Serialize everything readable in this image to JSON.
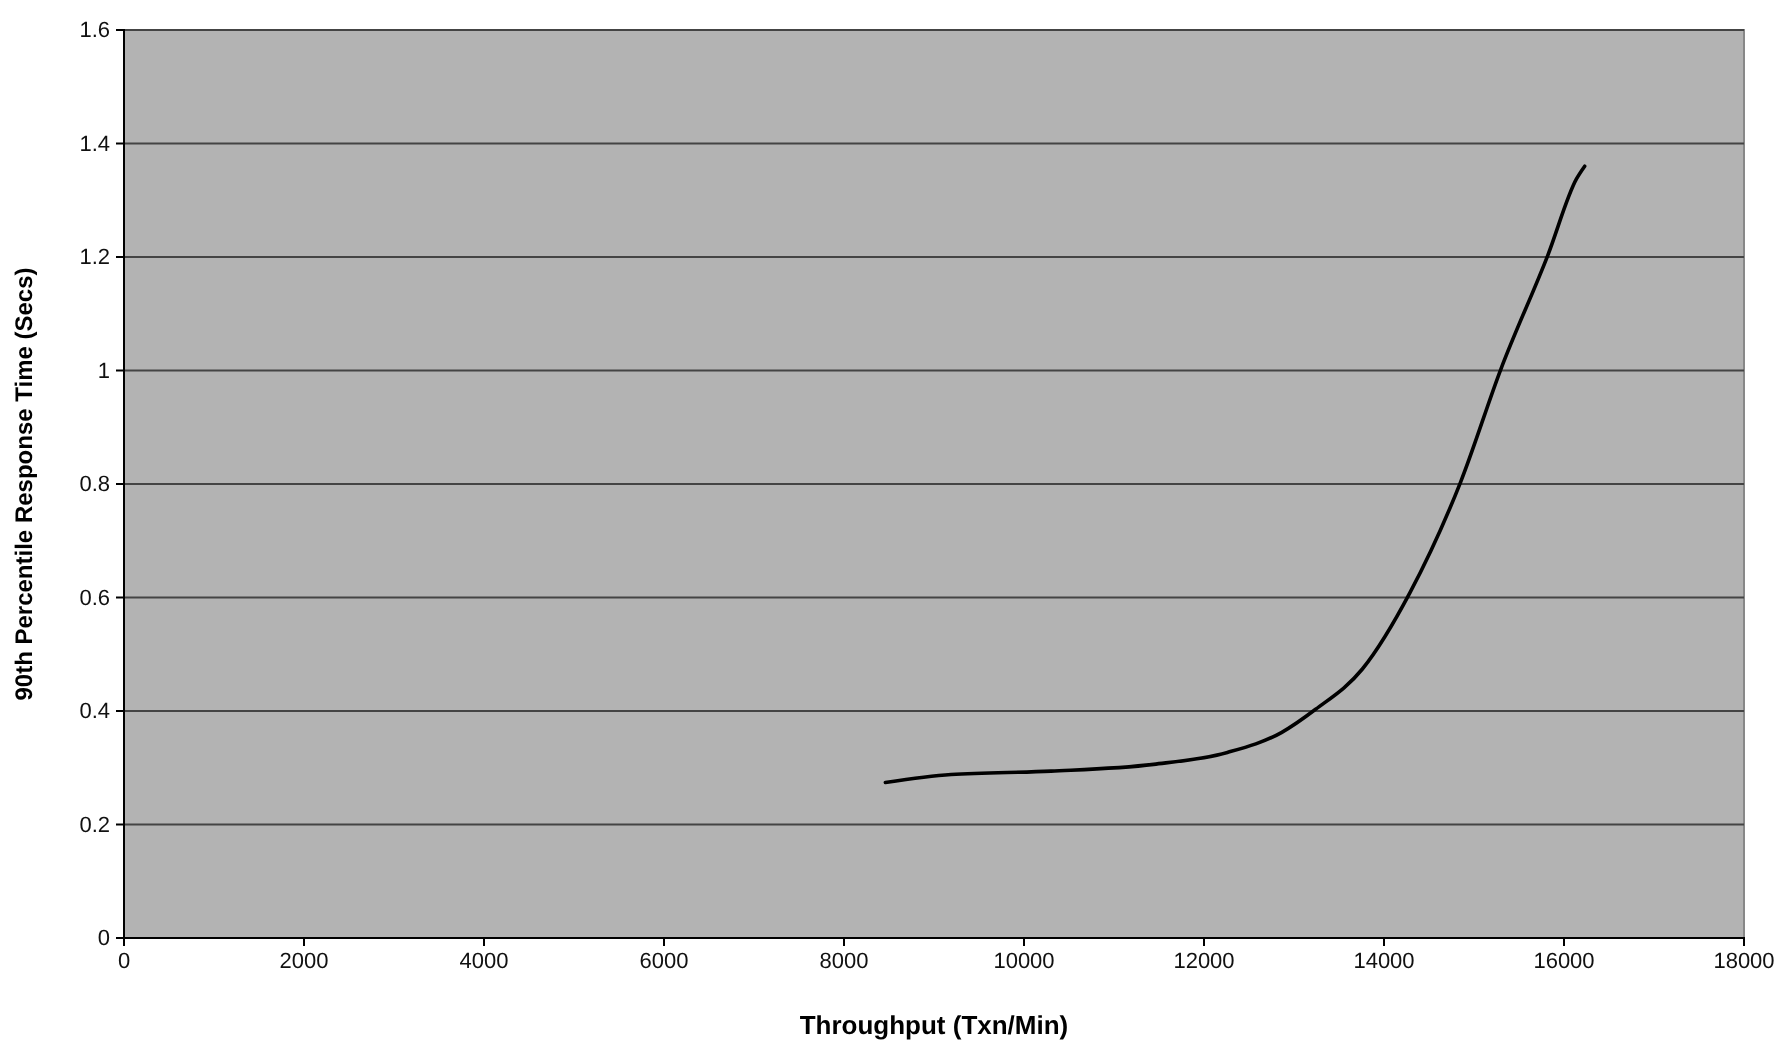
{
  "chart_data": {
    "type": "line",
    "xlabel": "Throughput (Txn/Min)",
    "ylabel": "90th Percentile Response Time (Secs)",
    "xlim": [
      0,
      18000
    ],
    "xticks": [
      0,
      2000,
      4000,
      6000,
      8000,
      10000,
      12000,
      14000,
      16000,
      18000
    ],
    "ylim": [
      0,
      1.6
    ],
    "yticks": [
      0,
      0.2,
      0.4,
      0.6,
      0.8,
      1,
      1.2,
      1.4,
      1.6
    ],
    "grid": "y",
    "marker": "none",
    "line_style": "solid",
    "series": [
      {
        "color": "#000000",
        "x": [
          8460,
          9190,
          10300,
          11440,
          12260,
          12860,
          13240,
          13760,
          14290,
          14850,
          15300,
          15820,
          16140,
          16230
        ],
        "values": [
          0.274,
          0.288,
          0.294,
          0.306,
          0.327,
          0.362,
          0.403,
          0.474,
          0.609,
          0.803,
          1.003,
          1.203,
          1.338,
          1.36
        ]
      }
    ]
  }
}
